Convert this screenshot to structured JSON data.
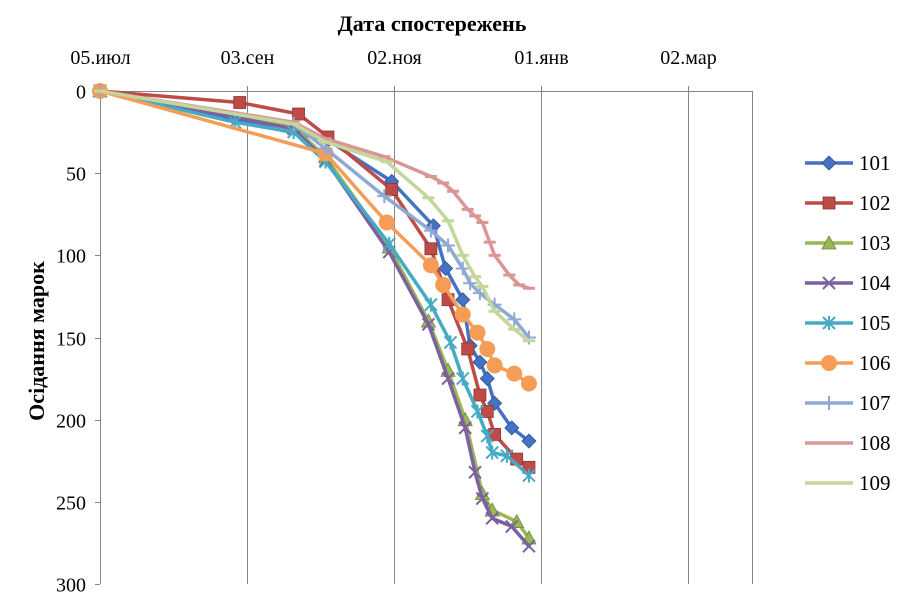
{
  "chart_data": {
    "type": "line",
    "title": "",
    "xlabel": "Дата спостережень",
    "ylabel": "Осідання марок",
    "x_axis": {
      "position": "top",
      "range": [
        "2013-07-05",
        "2014-03-28"
      ],
      "ticks": [
        {
          "date": "2013-07-05",
          "label": "05.июл"
        },
        {
          "date": "2013-09-03",
          "label": "03.сен"
        },
        {
          "date": "2013-11-02",
          "label": "02.ноя"
        },
        {
          "date": "2014-01-01",
          "label": "01.янв"
        },
        {
          "date": "2014-03-02",
          "label": "02.мар"
        }
      ]
    },
    "y_axis": {
      "reversed": true,
      "range": [
        0,
        300
      ],
      "ticks": [
        0,
        50,
        100,
        150,
        200,
        250,
        300
      ]
    },
    "grid": {
      "vertical": true,
      "horizontal": false
    },
    "legend_position": "right",
    "series": [
      {
        "name": "101",
        "color": "#4472C4",
        "marker": "diamond",
        "points": [
          [
            "2013-07-05",
            0
          ],
          [
            "2013-10-06",
            30
          ],
          [
            "2013-11-01",
            55
          ],
          [
            "2013-11-18",
            82
          ],
          [
            "2013-11-23",
            108
          ],
          [
            "2013-11-30",
            127
          ],
          [
            "2013-12-03",
            155
          ],
          [
            "2013-12-07",
            165
          ],
          [
            "2013-12-10",
            175
          ],
          [
            "2013-12-13",
            190
          ],
          [
            "2013-12-20",
            205
          ],
          [
            "2013-12-27",
            213
          ]
        ]
      },
      {
        "name": "102",
        "color": "#BE4B48",
        "marker": "square",
        "points": [
          [
            "2013-07-05",
            0
          ],
          [
            "2013-08-31",
            7
          ],
          [
            "2013-09-24",
            14
          ],
          [
            "2013-10-06",
            28
          ],
          [
            "2013-11-01",
            60
          ],
          [
            "2013-11-17",
            96
          ],
          [
            "2013-11-24",
            127
          ],
          [
            "2013-12-02",
            157
          ],
          [
            "2013-12-07",
            185
          ],
          [
            "2013-12-10",
            195
          ],
          [
            "2013-12-13",
            209
          ],
          [
            "2013-12-22",
            224
          ],
          [
            "2013-12-27",
            229
          ]
        ]
      },
      {
        "name": "103",
        "color": "#98B954",
        "marker": "triangle",
        "points": [
          [
            "2013-07-05",
            0
          ],
          [
            "2013-09-22",
            22
          ],
          [
            "2013-10-05",
            40
          ],
          [
            "2013-10-31",
            95
          ],
          [
            "2013-11-16",
            140
          ],
          [
            "2013-11-24",
            170
          ],
          [
            "2013-12-01",
            200
          ],
          [
            "2013-12-08",
            245
          ],
          [
            "2013-12-12",
            255
          ],
          [
            "2013-12-22",
            262
          ],
          [
            "2013-12-27",
            272
          ]
        ]
      },
      {
        "name": "104",
        "color": "#7D60A0",
        "marker": "x",
        "points": [
          [
            "2013-07-05",
            0
          ],
          [
            "2013-09-22",
            23
          ],
          [
            "2013-10-05",
            42
          ],
          [
            "2013-10-31",
            98
          ],
          [
            "2013-11-16",
            142
          ],
          [
            "2013-11-24",
            175
          ],
          [
            "2013-12-01",
            205
          ],
          [
            "2013-12-05",
            232
          ],
          [
            "2013-12-08",
            248
          ],
          [
            "2013-12-12",
            260
          ],
          [
            "2013-12-20",
            265
          ],
          [
            "2013-12-27",
            277
          ]
        ]
      },
      {
        "name": "105",
        "color": "#46AAC5",
        "marker": "asterisk",
        "points": [
          [
            "2013-07-05",
            0
          ],
          [
            "2013-08-29",
            19
          ],
          [
            "2013-09-22",
            25
          ],
          [
            "2013-10-05",
            43
          ],
          [
            "2013-10-31",
            93
          ],
          [
            "2013-11-17",
            130
          ],
          [
            "2013-11-25",
            153
          ],
          [
            "2013-11-30",
            175
          ],
          [
            "2013-12-06",
            195
          ],
          [
            "2013-12-10",
            210
          ],
          [
            "2013-12-12",
            220
          ],
          [
            "2013-12-18",
            222
          ],
          [
            "2013-12-27",
            234
          ]
        ]
      },
      {
        "name": "106",
        "color": "#F59D56",
        "marker": "circle",
        "points": [
          [
            "2013-07-05",
            0
          ],
          [
            "2013-10-05",
            38
          ],
          [
            "2013-10-30",
            80
          ],
          [
            "2013-11-17",
            106
          ],
          [
            "2013-11-22",
            118
          ],
          [
            "2013-11-30",
            136
          ],
          [
            "2013-12-06",
            147
          ],
          [
            "2013-12-10",
            157
          ],
          [
            "2013-12-13",
            167
          ],
          [
            "2013-12-21",
            172
          ],
          [
            "2013-12-27",
            178
          ]
        ]
      },
      {
        "name": "107",
        "color": "#8FA9D3",
        "marker": "plus",
        "points": [
          [
            "2013-07-05",
            0
          ],
          [
            "2013-09-22",
            20
          ],
          [
            "2013-10-05",
            35
          ],
          [
            "2013-10-29",
            64
          ],
          [
            "2013-11-17",
            85
          ],
          [
            "2013-11-24",
            94
          ],
          [
            "2013-11-30",
            108
          ],
          [
            "2013-12-03",
            117
          ],
          [
            "2013-12-07",
            123
          ],
          [
            "2013-12-13",
            130
          ],
          [
            "2013-12-21",
            139
          ],
          [
            "2013-12-27",
            150
          ]
        ]
      },
      {
        "name": "108",
        "color": "#D99694",
        "marker": "dash",
        "points": [
          [
            "2013-07-05",
            0
          ],
          [
            "2013-09-22",
            19
          ],
          [
            "2013-10-05",
            29
          ],
          [
            "2013-10-29",
            40
          ],
          [
            "2013-11-17",
            52
          ],
          [
            "2013-11-22",
            56
          ],
          [
            "2013-11-26",
            61
          ],
          [
            "2013-12-02",
            72
          ],
          [
            "2013-12-05",
            76
          ],
          [
            "2013-12-08",
            80
          ],
          [
            "2013-12-11",
            92
          ],
          [
            "2013-12-13",
            100
          ],
          [
            "2013-12-19",
            112
          ],
          [
            "2013-12-23",
            118
          ],
          [
            "2013-12-27",
            120
          ]
        ]
      },
      {
        "name": "109",
        "color": "#C3D69B",
        "marker": "dash",
        "points": [
          [
            "2013-07-05",
            0
          ],
          [
            "2013-09-22",
            20
          ],
          [
            "2013-10-05",
            31
          ],
          [
            "2013-10-30",
            43
          ],
          [
            "2013-11-16",
            65
          ],
          [
            "2013-11-24",
            79
          ],
          [
            "2013-11-30",
            100
          ],
          [
            "2013-12-05",
            113
          ],
          [
            "2013-12-08",
            119
          ],
          [
            "2013-12-13",
            134
          ],
          [
            "2013-12-21",
            145
          ],
          [
            "2013-12-27",
            152
          ]
        ]
      }
    ]
  }
}
